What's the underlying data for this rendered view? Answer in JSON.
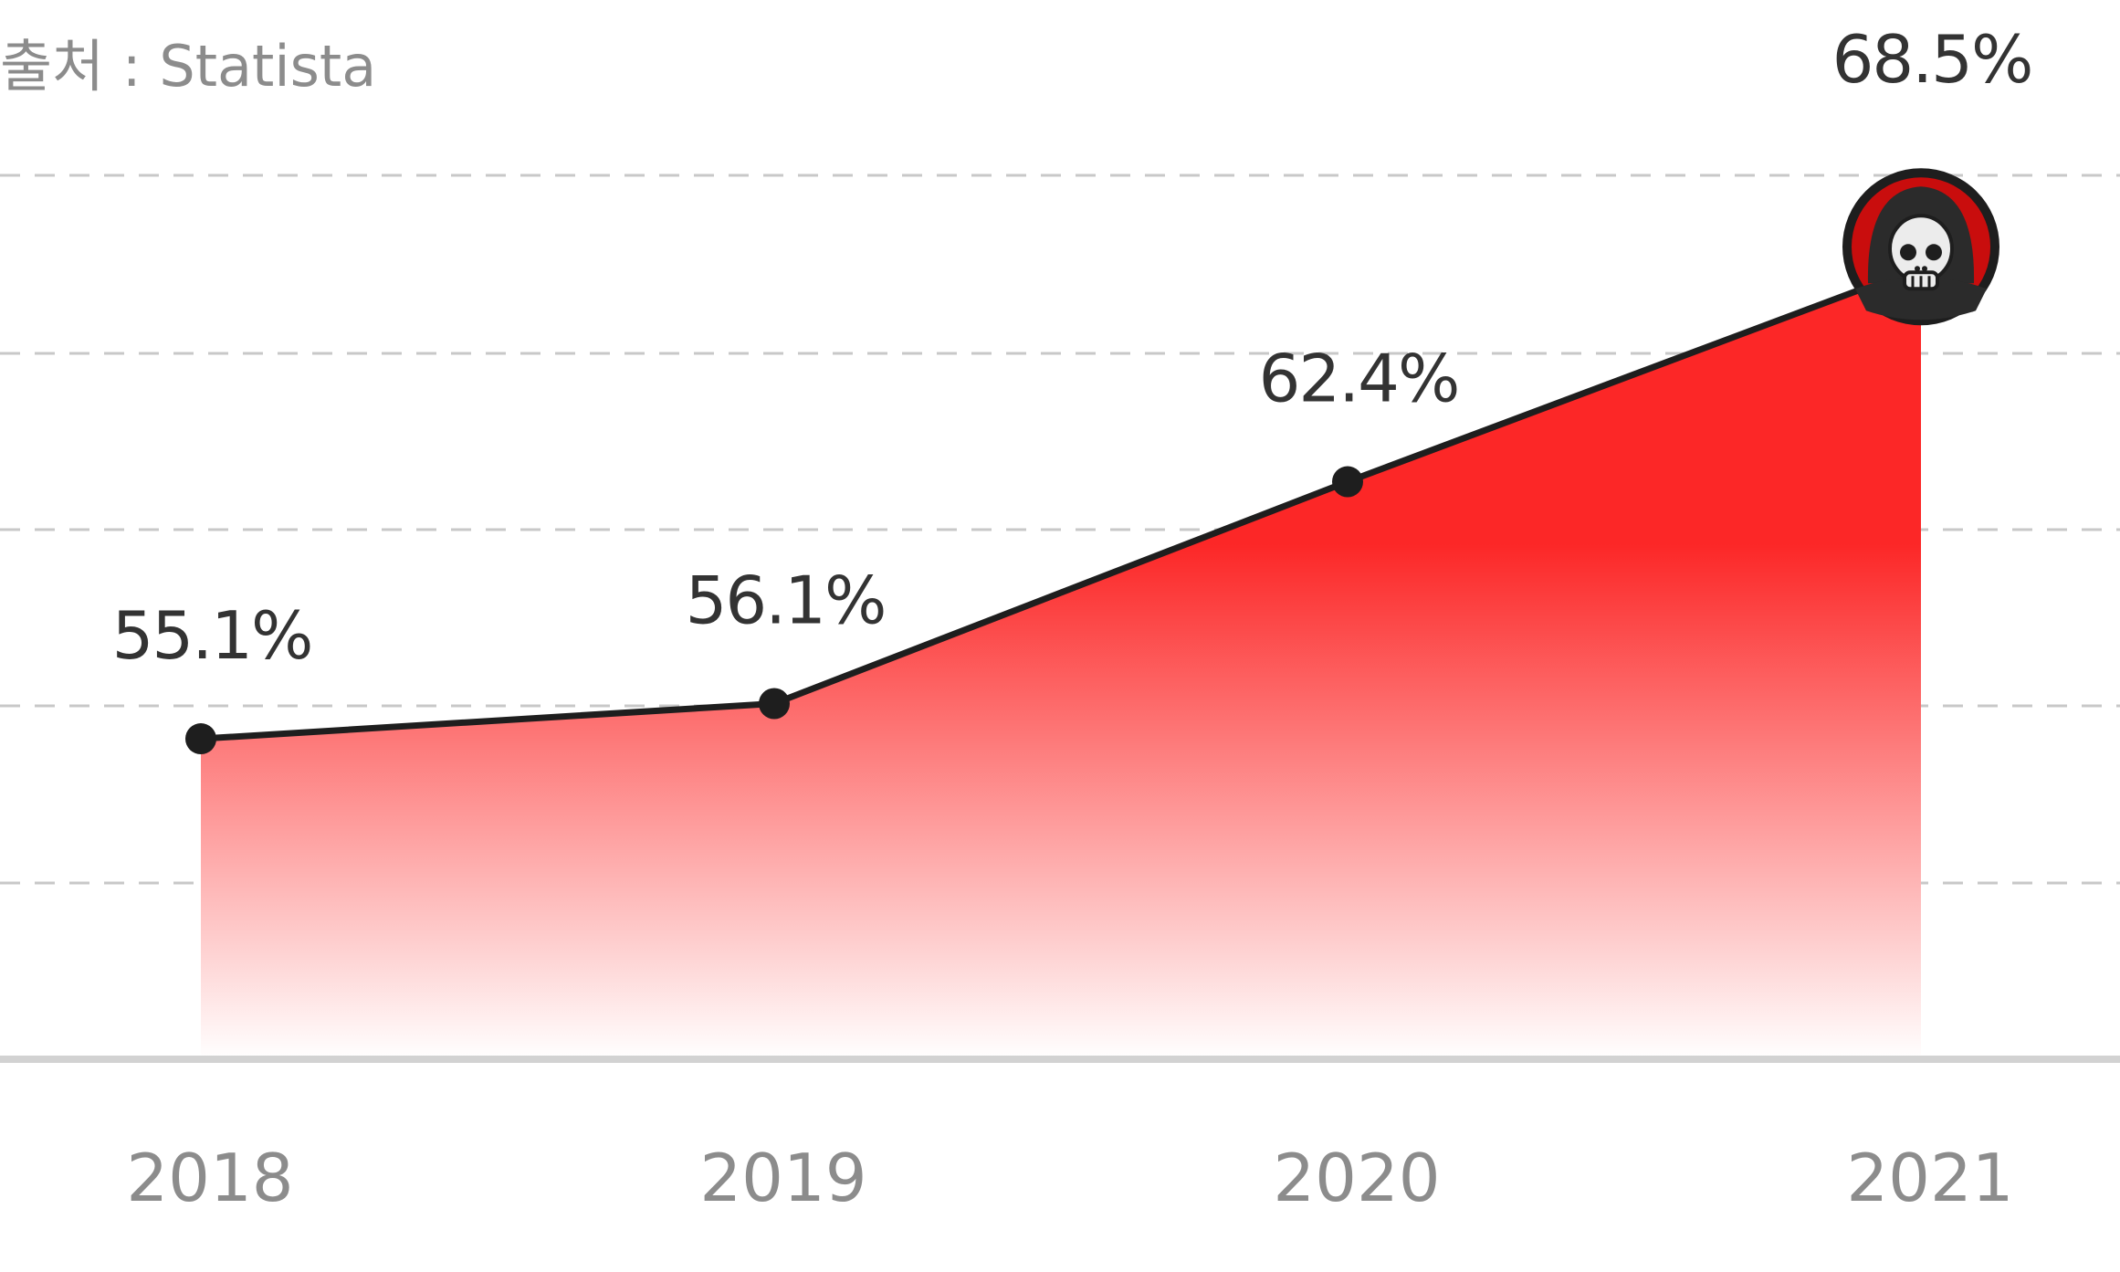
{
  "source_text": "출처 : Statista",
  "colors": {
    "area_top": "#fc2727",
    "area_bottom": "#ffffff",
    "line": "#1e1e1e",
    "grid": "#c8c8c8",
    "baseline": "#d2d2d2",
    "value_label": "#333333",
    "tick_label": "#8c8c8c",
    "icon_ring": "#1e1e1e",
    "icon_fill": "#c90d0d"
  },
  "chart_data": {
    "type": "area",
    "categories": [
      "2018",
      "2019",
      "2020",
      "2021"
    ],
    "values": [
      55.1,
      56.1,
      62.4,
      68.5
    ],
    "data_labels": [
      "55.1%",
      "56.1%",
      "62.4%",
      "68.5%"
    ],
    "title": "",
    "xlabel": "",
    "ylabel": "",
    "ylim": [
      46,
      71.1
    ],
    "grid": true,
    "last_point_marker": "grim-reaper-icon"
  }
}
